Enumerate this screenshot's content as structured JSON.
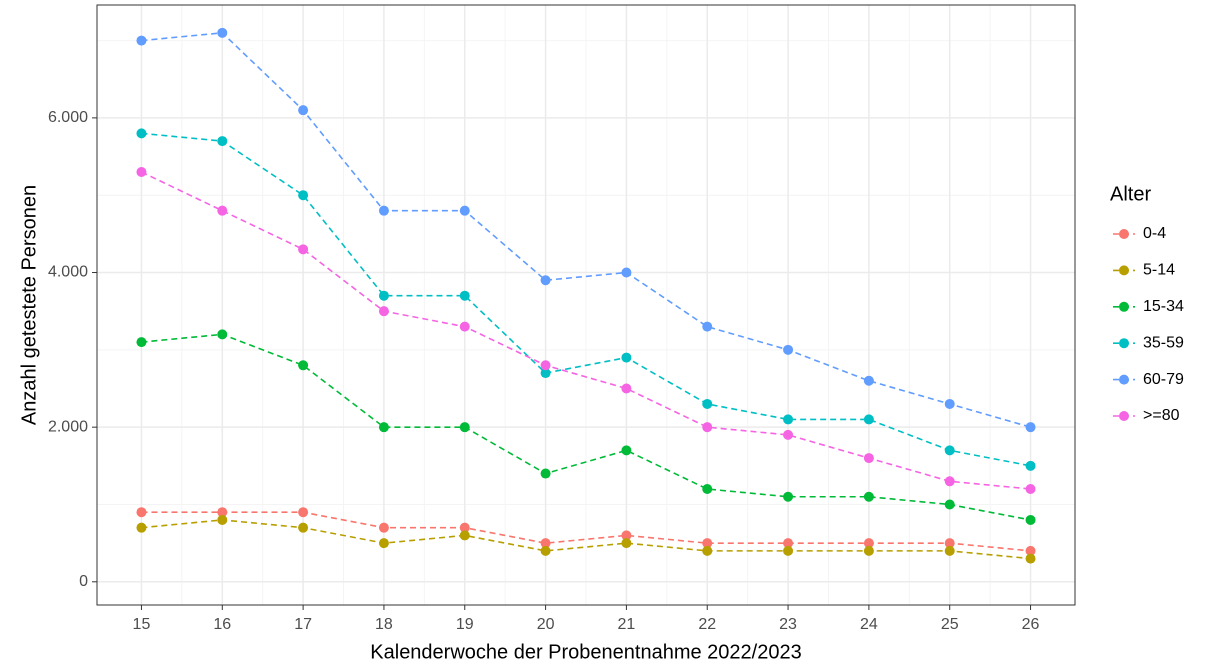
{
  "chart_data": {
    "type": "line",
    "x_label": "Kalenderwoche der Probenentnahme 2022/2023",
    "y_label": "Anzahl getestete Personen",
    "legend_title": "Alter",
    "legend_position": "right",
    "grid": true,
    "x": [
      15,
      16,
      17,
      18,
      19,
      20,
      21,
      22,
      23,
      24,
      25,
      26
    ],
    "xlim": [
      14.45,
      26.55
    ],
    "xticks": [
      15,
      16,
      17,
      18,
      19,
      20,
      21,
      22,
      23,
      24,
      25,
      26
    ],
    "ylim": [
      -300,
      7460
    ],
    "yticks": [
      0,
      {
        "value": 2000,
        "label": "2.000"
      },
      {
        "value": 4000,
        "label": "4.000"
      },
      {
        "value": 6000,
        "label": "6.000"
      }
    ],
    "series": [
      {
        "name": "0-4",
        "color": "#F8766D",
        "values": [
          900,
          900,
          900,
          700,
          700,
          500,
          600,
          500,
          500,
          500,
          500,
          400
        ]
      },
      {
        "name": "5-14",
        "color": "#B79F00",
        "values": [
          700,
          800,
          700,
          500,
          600,
          400,
          500,
          400,
          400,
          400,
          400,
          300
        ]
      },
      {
        "name": "15-34",
        "color": "#00BA38",
        "values": [
          3100,
          3200,
          2800,
          2000,
          2000,
          1400,
          1700,
          1200,
          1100,
          1100,
          1000,
          800
        ]
      },
      {
        "name": "35-59",
        "color": "#00BFC4",
        "values": [
          5800,
          5700,
          5000,
          3700,
          3700,
          2700,
          2900,
          2300,
          2100,
          2100,
          1700,
          1500
        ]
      },
      {
        "name": "60-79",
        "color": "#619CFF",
        "values": [
          7000,
          7100,
          6100,
          4800,
          4800,
          3900,
          4000,
          3300,
          3000,
          2600,
          2300,
          2000
        ]
      },
      {
        "name": ">=80",
        "color": "#F564E3",
        "values": [
          5300,
          4800,
          4300,
          3500,
          3300,
          2800,
          2500,
          2000,
          1900,
          1600,
          1300,
          1200
        ]
      }
    ]
  }
}
